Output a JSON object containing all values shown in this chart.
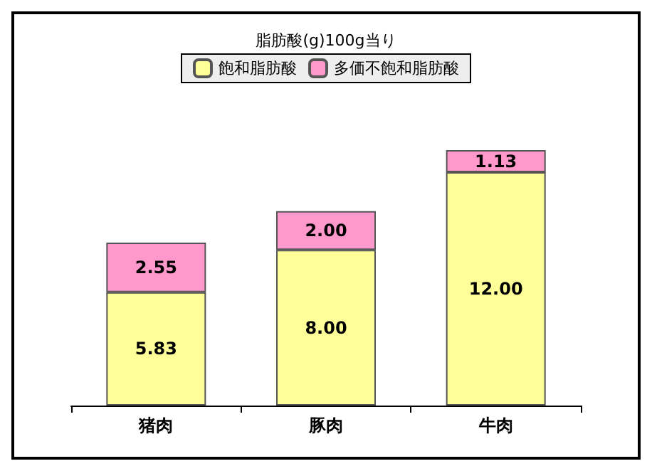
{
  "chart_data": {
    "type": "bar",
    "title": "脂肪酸(g)100g当り",
    "categories": [
      "猪肉",
      "豚肉",
      "牛肉"
    ],
    "stacked": true,
    "legend": "top",
    "series": [
      {
        "name": "飽和脂肪酸",
        "color": "#ffff99",
        "values": [
          5.83,
          8.0,
          12.0
        ],
        "value_labels": [
          "5.83",
          "8.00",
          "12.00"
        ]
      },
      {
        "name": "多価不飽和脂肪酸",
        "color": "#ff99cc",
        "values": [
          2.55,
          2.0,
          1.13
        ],
        "value_labels": [
          "2.55",
          "2.00",
          "1.13"
        ]
      }
    ]
  }
}
